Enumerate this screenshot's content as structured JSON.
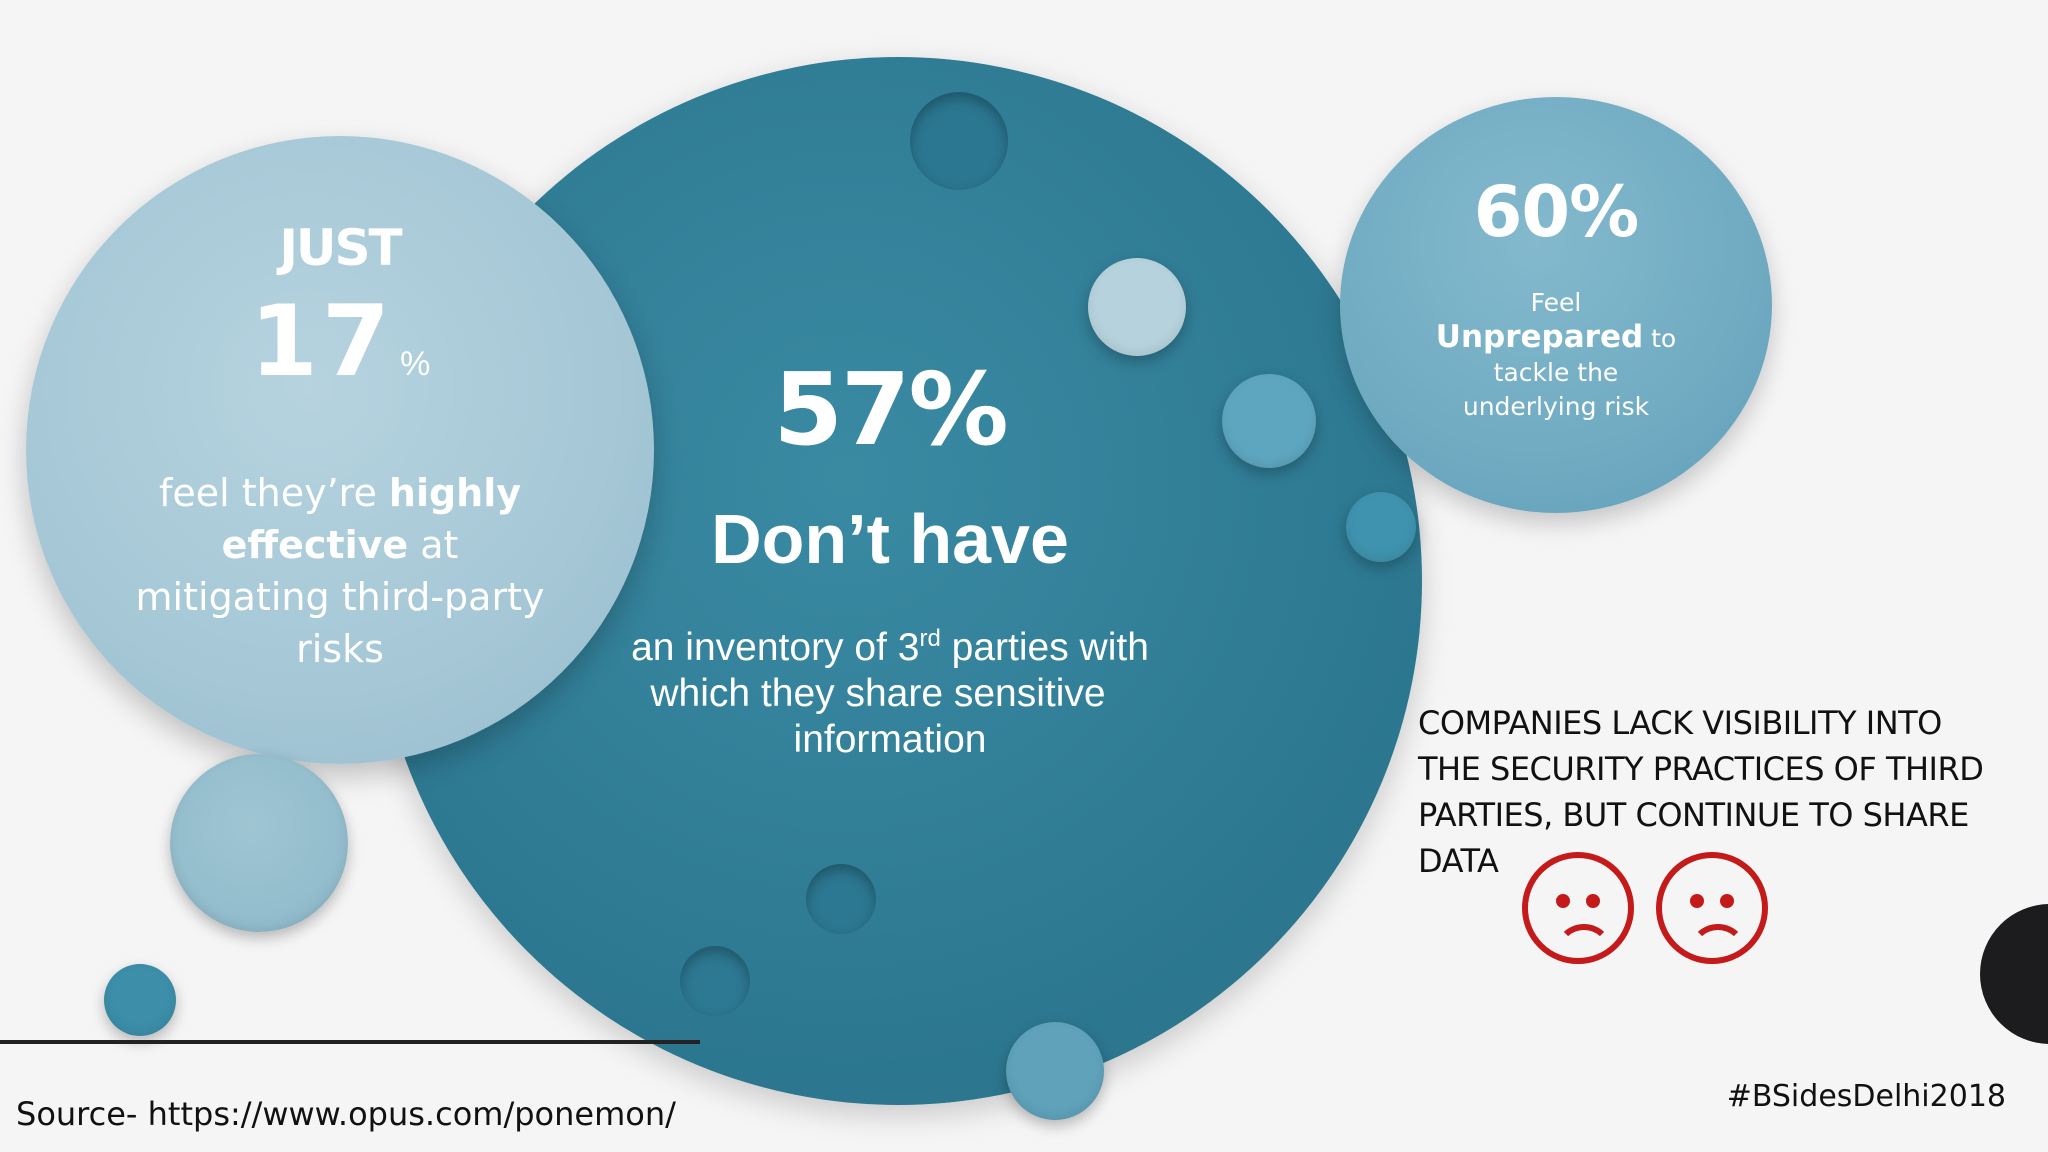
{
  "slide": {
    "left_stat": {
      "prefix": "JUST",
      "number": "17",
      "unit": "%",
      "line1_pre": "feel they’re ",
      "line1_bold": "highly",
      "line2_bold": "effective",
      "line2_post": " at",
      "line3": "mitigating third-party",
      "line4": "risks"
    },
    "center_stat": {
      "number": "57%",
      "headline": "Don’t have",
      "desc_line1_pre": "an inventory of 3",
      "desc_line1_sup": "rd",
      "desc_line1_post": " parties with",
      "desc_line2": "which they share sensitive",
      "desc_line3": "information"
    },
    "right_stat": {
      "number": "60%",
      "line1": "Feel",
      "line2_bold": "Unprepared",
      "line2_post": " to",
      "line3": "tackle the",
      "line4": "underlying risk"
    },
    "callout": {
      "line1": "COMPANIES LACK VISIBILITY INTO",
      "line2": "THE SECURITY PRACTICES OF THIRD",
      "line3": "PARTIES, BUT CONTINUE TO SHARE",
      "line4": "DATA"
    },
    "source": "Source- https://www.opus.com/ponemon/",
    "hashtag": "#BSidesDelhi2018"
  },
  "icons": [
    "sad-face-icon",
    "sad-face-icon"
  ],
  "colors": {
    "accent_dark": "#2f7b94",
    "accent_light": "#a5c7d6",
    "accent_mid": "#70abc2",
    "sad_red": "#c41a1a"
  }
}
